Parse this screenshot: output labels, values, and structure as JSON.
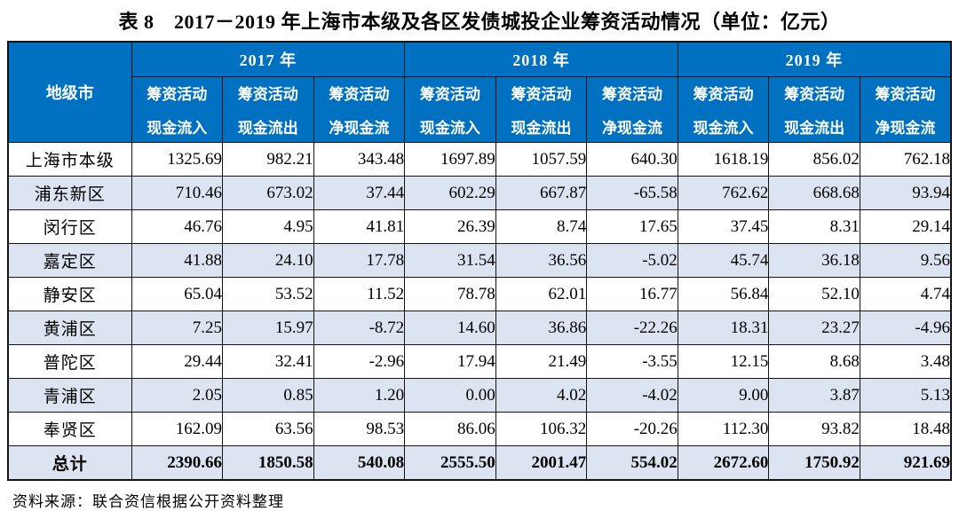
{
  "title": "表 8　2017－2019 年上海市本级及各区发债城投企业筹资活动情况（单位：亿元）",
  "source_note": "资料来源：联合资信根据公开资料整理",
  "colors": {
    "header_bg": "#0070C0",
    "header_text": "#ffffff",
    "band_bg": "#DCE4F2",
    "border": "#141414"
  },
  "chart_data": {
    "type": "table",
    "title": "表 8　2017－2019 年上海市本级及各区发债城投企业筹资活动情况（单位：亿元）",
    "region_header": "地级市",
    "years": [
      "2017 年",
      "2018 年",
      "2019 年"
    ],
    "metrics": [
      {
        "line1": "筹资活动",
        "line2": "现金流入"
      },
      {
        "line1": "筹资活动",
        "line2": "现金流出"
      },
      {
        "line1": "筹资活动",
        "line2": "净现金流"
      }
    ],
    "rows": [
      {
        "region": "上海市本级",
        "values": [
          "1325.69",
          "982.21",
          "343.48",
          "1697.89",
          "1057.59",
          "640.30",
          "1618.19",
          "856.02",
          "762.18"
        ]
      },
      {
        "region": "浦东新区",
        "values": [
          "710.46",
          "673.02",
          "37.44",
          "602.29",
          "667.87",
          "-65.58",
          "762.62",
          "668.68",
          "93.94"
        ]
      },
      {
        "region": "闵行区",
        "values": [
          "46.76",
          "4.95",
          "41.81",
          "26.39",
          "8.74",
          "17.65",
          "37.45",
          "8.31",
          "29.14"
        ]
      },
      {
        "region": "嘉定区",
        "values": [
          "41.88",
          "24.10",
          "17.78",
          "31.54",
          "36.56",
          "-5.02",
          "45.74",
          "36.18",
          "9.56"
        ]
      },
      {
        "region": "静安区",
        "values": [
          "65.04",
          "53.52",
          "11.52",
          "78.78",
          "62.01",
          "16.77",
          "56.84",
          "52.10",
          "4.74"
        ]
      },
      {
        "region": "黄浦区",
        "values": [
          "7.25",
          "15.97",
          "-8.72",
          "14.60",
          "36.86",
          "-22.26",
          "18.31",
          "23.27",
          "-4.96"
        ]
      },
      {
        "region": "普陀区",
        "values": [
          "29.44",
          "32.41",
          "-2.96",
          "17.94",
          "21.49",
          "-3.55",
          "12.15",
          "8.68",
          "3.48"
        ]
      },
      {
        "region": "青浦区",
        "values": [
          "2.05",
          "0.85",
          "1.20",
          "0.00",
          "4.02",
          "-4.02",
          "9.00",
          "3.87",
          "5.13"
        ]
      },
      {
        "region": "奉贤区",
        "values": [
          "162.09",
          "63.56",
          "98.53",
          "86.06",
          "106.32",
          "-20.26",
          "112.30",
          "93.82",
          "18.48"
        ]
      }
    ],
    "total_row": {
      "region": "总计",
      "values": [
        "2390.66",
        "1850.58",
        "540.08",
        "2555.50",
        "2001.47",
        "554.02",
        "2672.60",
        "1750.92",
        "921.69"
      ]
    }
  }
}
